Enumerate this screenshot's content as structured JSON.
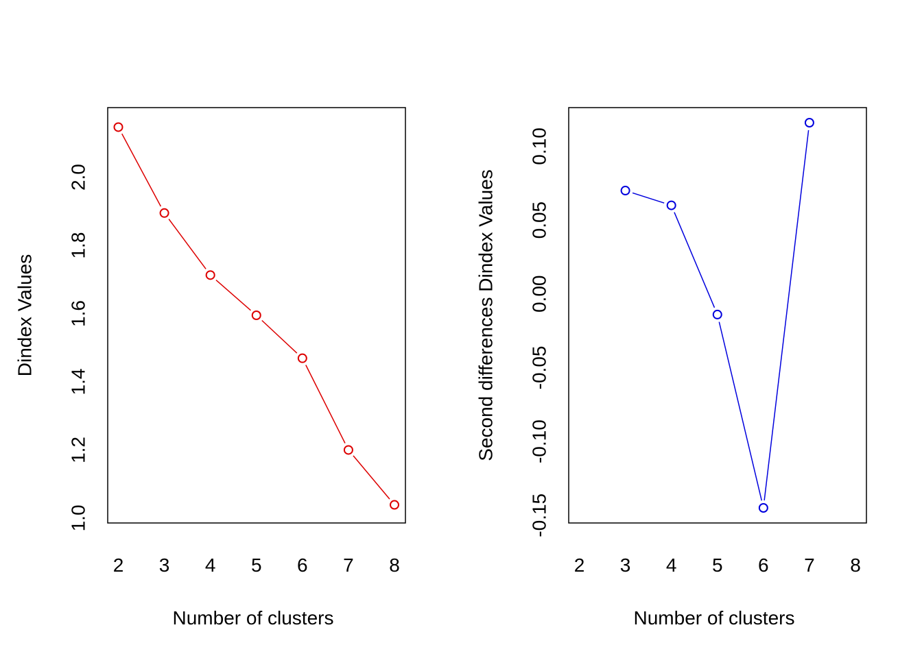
{
  "chart_data": [
    {
      "type": "line",
      "title": "",
      "xlabel": "Number of clusters",
      "ylabel": "Dindex Values",
      "x": [
        2,
        3,
        4,
        5,
        6,
        7,
        8
      ],
      "series": [
        {
          "values": [
            2.147,
            1.895,
            1.713,
            1.595,
            1.469,
            1.2,
            1.039
          ],
          "color": "#dd0000"
        }
      ],
      "xlim": [
        2,
        8
      ],
      "ylim": [
        1.03,
        2.16
      ],
      "x_ticks": [
        "2",
        "3",
        "4",
        "5",
        "6",
        "7",
        "8"
      ],
      "y_ticks": [
        1.0,
        1.2,
        1.4,
        1.6,
        1.8,
        2.0
      ],
      "y_tick_labels": [
        "1.0",
        "1.2",
        "1.4",
        "1.6",
        "1.8",
        "2.0"
      ],
      "grid": false,
      "marker": "open-circle"
    },
    {
      "type": "line",
      "title": "",
      "xlabel": "Number of clusters",
      "ylabel": "Second differences Dindex Values",
      "x": [
        2,
        3,
        4,
        5,
        6,
        7,
        8
      ],
      "series": [
        {
          "values": [
            null,
            0.07,
            0.06,
            -0.014,
            -0.145,
            0.116,
            null
          ],
          "color": "#0000dd"
        }
      ],
      "xlim": [
        2,
        8
      ],
      "ylim": [
        -0.145,
        0.116
      ],
      "x_ticks": [
        "2",
        "3",
        "4",
        "5",
        "6",
        "7",
        "8"
      ],
      "y_ticks": [
        -0.15,
        -0.1,
        -0.05,
        0.0,
        0.05,
        0.1
      ],
      "y_tick_labels": [
        "-0.15",
        "-0.10",
        "-0.05",
        "0.00",
        "0.05",
        "0.10"
      ],
      "grid": false,
      "marker": "open-circle"
    }
  ]
}
